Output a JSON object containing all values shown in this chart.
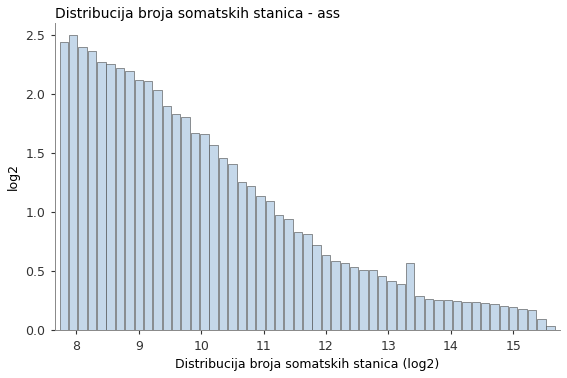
{
  "title": "Distribucija broja somatskih stanica - ass",
  "xlabel": "Distribucija broja somatskih stanica (log2)",
  "ylabel": "log2",
  "bar_color": "#c5d8ea",
  "bar_edge_color": "#444444",
  "bar_edge_width": 0.4,
  "xlim": [
    7.65,
    15.75
  ],
  "ylim": [
    0.0,
    2.6
  ],
  "yticks": [
    0.0,
    0.5,
    1.0,
    1.5,
    2.0,
    2.5
  ],
  "xticks": [
    8,
    9,
    10,
    11,
    12,
    13,
    14,
    15
  ],
  "bar_width": 0.135,
  "background_color": "#ffffff",
  "x_values": [
    7.8,
    7.95,
    8.1,
    8.25,
    8.4,
    8.55,
    8.7,
    8.85,
    9.0,
    9.15,
    9.3,
    9.45,
    9.6,
    9.75,
    9.9,
    10.05,
    10.2,
    10.35,
    10.5,
    10.65,
    10.8,
    10.95,
    11.1,
    11.25,
    11.4,
    11.55,
    11.7,
    11.85,
    12.0,
    12.15,
    12.3,
    12.45,
    12.6,
    12.75,
    12.9,
    13.05,
    13.2,
    13.35,
    13.5,
    13.65,
    13.8,
    13.95,
    14.1,
    14.25,
    14.4,
    14.55,
    14.7,
    14.85,
    15.0,
    15.15,
    15.3,
    15.45,
    15.6
  ],
  "y_values": [
    2.44,
    2.5,
    2.4,
    2.37,
    2.27,
    2.26,
    2.22,
    2.2,
    2.12,
    2.11,
    2.04,
    1.9,
    1.83,
    1.81,
    1.67,
    1.66,
    1.57,
    1.46,
    1.41,
    1.26,
    1.22,
    1.14,
    1.1,
    0.98,
    0.94,
    0.83,
    0.82,
    0.72,
    0.64,
    0.59,
    0.57,
    0.54,
    0.51,
    0.51,
    0.46,
    0.42,
    0.39,
    0.57,
    0.29,
    0.27,
    0.26,
    0.26,
    0.25,
    0.24,
    0.24,
    0.23,
    0.22,
    0.21,
    0.2,
    0.18,
    0.17,
    0.1,
    0.04
  ],
  "title_fontsize": 10,
  "axis_fontsize": 9,
  "tick_fontsize": 9
}
